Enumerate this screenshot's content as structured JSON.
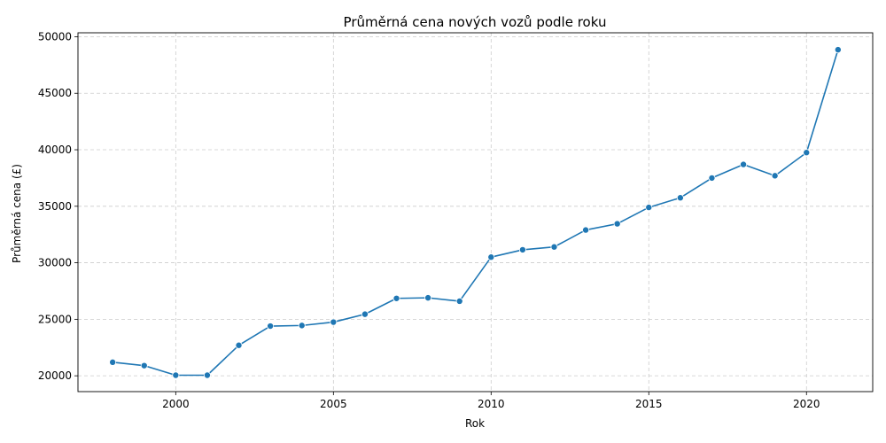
{
  "chart_data": {
    "type": "line",
    "title": "Průměrná cena nových vozů podle roku",
    "xlabel": "Rok",
    "ylabel": "Průměrná cena (£)",
    "xlim": [
      1996.9,
      2022.1
    ],
    "ylim": [
      18600,
      50350
    ],
    "xticks": [
      2000,
      2005,
      2010,
      2015,
      2020
    ],
    "yticks": [
      20000,
      25000,
      30000,
      35000,
      40000,
      45000,
      50000
    ],
    "grid": true,
    "series": [
      {
        "color": "#1f77b4",
        "marker": "circle",
        "x": [
          1998,
          1999,
          2000,
          2001,
          2002,
          2003,
          2004,
          2005,
          2006,
          2007,
          2008,
          2009,
          2010,
          2011,
          2012,
          2013,
          2014,
          2015,
          2016,
          2017,
          2018,
          2019,
          2020,
          2021
        ],
        "y": [
          21200,
          20900,
          20050,
          20050,
          22700,
          24400,
          24450,
          24750,
          25450,
          26850,
          26900,
          26600,
          30500,
          31150,
          31400,
          32900,
          33450,
          34900,
          35750,
          37500,
          38700,
          37700,
          39750,
          48850
        ]
      }
    ]
  }
}
